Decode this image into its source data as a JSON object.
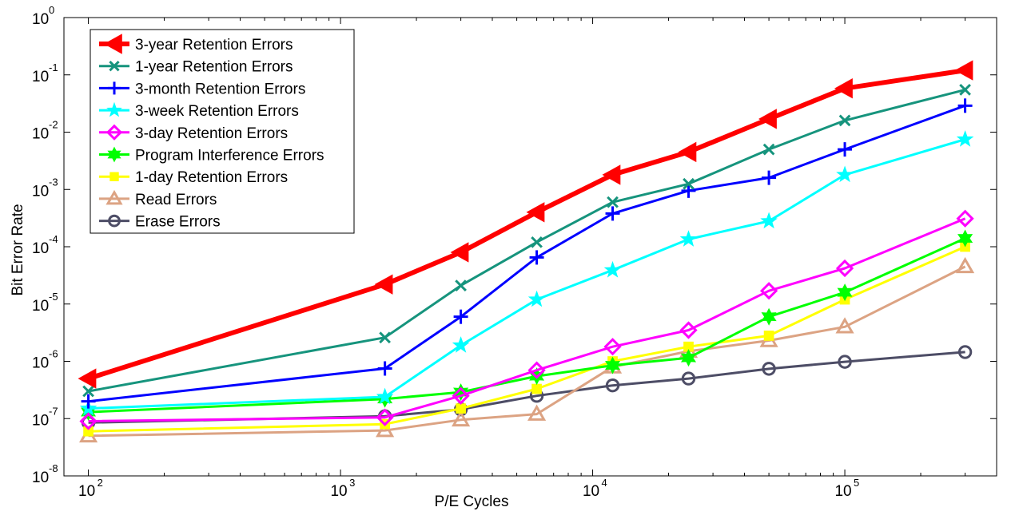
{
  "chart_data": {
    "type": "line",
    "xlabel": "P/E Cycles",
    "ylabel": "Bit Error Rate",
    "x_scale": "log",
    "y_scale": "log",
    "xlim": [
      80,
      400000
    ],
    "ylim": [
      1e-08,
      1
    ],
    "grid": false,
    "legend_position": "top-left",
    "x_ticks": [
      {
        "value": 100,
        "base": "10",
        "exp": "2"
      },
      {
        "value": 1000,
        "base": "10",
        "exp": "3"
      },
      {
        "value": 10000,
        "base": "10",
        "exp": "4"
      },
      {
        "value": 100000,
        "base": "10",
        "exp": "5"
      }
    ],
    "y_ticks": [
      {
        "value": 1e-08,
        "base": "10",
        "exp": "-8"
      },
      {
        "value": 1e-07,
        "base": "10",
        "exp": "-7"
      },
      {
        "value": 1e-06,
        "base": "10",
        "exp": "-6"
      },
      {
        "value": 1e-05,
        "base": "10",
        "exp": "-5"
      },
      {
        "value": 0.0001,
        "base": "10",
        "exp": "-4"
      },
      {
        "value": 0.001,
        "base": "10",
        "exp": "-3"
      },
      {
        "value": 0.01,
        "base": "10",
        "exp": "-2"
      },
      {
        "value": 0.1,
        "base": "10",
        "exp": "-1"
      },
      {
        "value": 1,
        "base": "10",
        "exp": "0"
      }
    ],
    "series": [
      {
        "name": "3-year Retention Errors",
        "color": "#ff0000",
        "marker": "triangle-left",
        "width": 6,
        "points": [
          [
            100,
            5e-07
          ],
          [
            1500,
            2.2e-05
          ],
          [
            3000,
            8e-05
          ],
          [
            6000,
            0.0004
          ],
          [
            12000,
            0.0018
          ],
          [
            24000,
            0.0045
          ],
          [
            50000,
            0.017
          ],
          [
            100000,
            0.058
          ],
          [
            300000,
            0.12
          ]
        ]
      },
      {
        "name": "1-year Retention Errors",
        "color": "#16947d",
        "marker": "x",
        "width": 3,
        "points": [
          [
            100,
            3e-07
          ],
          [
            1500,
            2.6e-06
          ],
          [
            3000,
            2.1e-05
          ],
          [
            6000,
            0.00012
          ],
          [
            12000,
            0.0006
          ],
          [
            24000,
            0.00125
          ],
          [
            50000,
            0.005
          ],
          [
            100000,
            0.016
          ],
          [
            300000,
            0.055
          ]
        ]
      },
      {
        "name": "3-month Retention Errors",
        "color": "#0000ff",
        "marker": "plus",
        "width": 3,
        "points": [
          [
            100,
            2e-07
          ],
          [
            1500,
            7.5e-07
          ],
          [
            3000,
            6e-06
          ],
          [
            6000,
            6.5e-05
          ],
          [
            12000,
            0.00038
          ],
          [
            24000,
            0.00095
          ],
          [
            50000,
            0.0016
          ],
          [
            100000,
            0.005
          ],
          [
            300000,
            0.029
          ]
        ]
      },
      {
        "name": "3-week Retention Errors",
        "color": "#00ffff",
        "marker": "star",
        "width": 3,
        "points": [
          [
            100,
            1.5e-07
          ],
          [
            1500,
            2.4e-07
          ],
          [
            3000,
            1.9e-06
          ],
          [
            6000,
            1.2e-05
          ],
          [
            12000,
            3.9e-05
          ],
          [
            24000,
            0.000135
          ],
          [
            50000,
            0.00028
          ],
          [
            100000,
            0.0018
          ],
          [
            300000,
            0.0075
          ]
        ]
      },
      {
        "name": "3-day Retention Errors",
        "color": "#ff00ff",
        "marker": "diamond",
        "width": 3,
        "points": [
          [
            100,
            9e-08
          ],
          [
            1500,
            1.05e-07
          ],
          [
            3000,
            2.5e-07
          ],
          [
            6000,
            7e-07
          ],
          [
            12000,
            1.8e-06
          ],
          [
            24000,
            3.5e-06
          ],
          [
            50000,
            1.7e-05
          ],
          [
            100000,
            4.2e-05
          ],
          [
            300000,
            0.00031
          ]
        ]
      },
      {
        "name": "Program Interference Errors",
        "color": "#00ff00",
        "marker": "hexagram",
        "width": 3,
        "points": [
          [
            100,
            1.3e-07
          ],
          [
            1500,
            2.2e-07
          ],
          [
            3000,
            2.9e-07
          ],
          [
            6000,
            5.5e-07
          ],
          [
            12000,
            8.5e-07
          ],
          [
            24000,
            1.15e-06
          ],
          [
            50000,
            6e-06
          ],
          [
            100000,
            1.6e-05
          ],
          [
            300000,
            0.00014
          ]
        ]
      },
      {
        "name": "1-day Retention Errors",
        "color": "#ffff00",
        "marker": "square",
        "width": 3,
        "points": [
          [
            100,
            6e-08
          ],
          [
            1500,
            8e-08
          ],
          [
            3000,
            1.5e-07
          ],
          [
            6000,
            3.3e-07
          ],
          [
            12000,
            1e-06
          ],
          [
            24000,
            1.8e-06
          ],
          [
            50000,
            2.8e-06
          ],
          [
            100000,
            1.2e-05
          ],
          [
            300000,
            0.0001
          ]
        ]
      },
      {
        "name": "Read Errors",
        "color": "#dca383",
        "marker": "triangle-up",
        "width": 3,
        "points": [
          [
            100,
            5e-08
          ],
          [
            1500,
            6.2e-08
          ],
          [
            3000,
            9.5e-08
          ],
          [
            6000,
            1.2e-07
          ],
          [
            12000,
            8e-07
          ],
          [
            24000,
            1.5e-06
          ],
          [
            50000,
            2.3e-06
          ],
          [
            100000,
            4e-06
          ],
          [
            300000,
            4.5e-05
          ]
        ]
      },
      {
        "name": "Erase Errors",
        "color": "#4d4d66",
        "marker": "circle",
        "width": 3,
        "points": [
          [
            100,
            8.5e-08
          ],
          [
            1500,
            1.1e-07
          ],
          [
            3000,
            1.45e-07
          ],
          [
            6000,
            2.5e-07
          ],
          [
            12000,
            3.8e-07
          ],
          [
            24000,
            5e-07
          ],
          [
            50000,
            7.4e-07
          ],
          [
            100000,
            9.8e-07
          ],
          [
            300000,
            1.45e-06
          ]
        ]
      }
    ]
  }
}
